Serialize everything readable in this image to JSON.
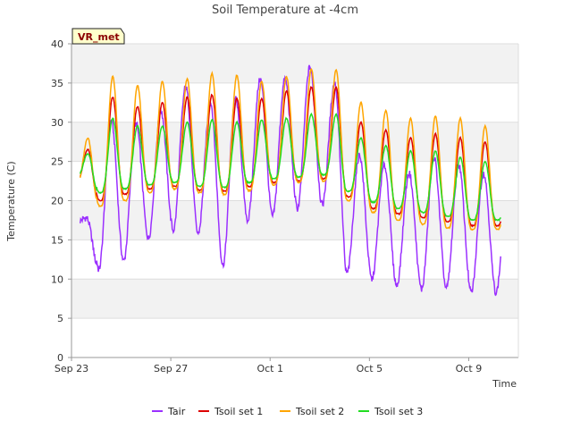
{
  "chart_data": {
    "type": "line",
    "title": "Soil Temperature at -4cm",
    "xlabel": "Time",
    "ylabel": "Temperature (C)",
    "ylim": [
      0,
      40
    ],
    "xlim_days": [
      0,
      18
    ],
    "yticks": [
      0,
      5,
      10,
      15,
      20,
      25,
      30,
      35,
      40
    ],
    "xticks": [
      {
        "label": "Sep 23",
        "day": 0
      },
      {
        "label": "Sep 27",
        "day": 4
      },
      {
        "label": "Oct 1",
        "day": 8
      },
      {
        "label": "Oct 5",
        "day": 12
      },
      {
        "label": "Oct 9",
        "day": 16
      }
    ],
    "badge": "VR_met",
    "grid": true,
    "legend_position": "bottom",
    "series": [
      {
        "name": "Tair",
        "color": "#9b30ff",
        "daily_max": [
          17.8,
          30.2,
          29.8,
          31.5,
          34.5,
          32.5,
          33.0,
          35.5,
          35.5,
          37.0,
          35.0,
          25.8,
          24.5,
          23.5,
          25.5,
          24.5,
          23.5
        ],
        "daily_min": [
          17.0,
          11.2,
          12.3,
          15.2,
          16.2,
          15.8,
          11.8,
          17.5,
          18.0,
          19.0,
          19.5,
          10.8,
          10.0,
          9.2,
          8.7,
          8.8,
          8.3
        ]
      },
      {
        "name": "Tsoil set 1",
        "color": "#dd0000",
        "daily_max": [
          26.5,
          33.2,
          32.0,
          32.5,
          33.2,
          33.5,
          33.0,
          33.0,
          34.0,
          34.5,
          34.5,
          30.0,
          29.0,
          28.0,
          28.5,
          28.0,
          27.5
        ],
        "daily_min": [
          22.5,
          20.0,
          20.8,
          21.5,
          21.8,
          21.3,
          21.2,
          21.8,
          22.3,
          22.5,
          22.8,
          20.5,
          19.0,
          18.3,
          17.8,
          17.3,
          16.8
        ]
      },
      {
        "name": "Tsoil set 2",
        "color": "#ffa500",
        "daily_max": [
          28.0,
          35.8,
          34.7,
          35.2,
          35.5,
          36.2,
          36.0,
          35.2,
          35.8,
          36.8,
          36.7,
          32.5,
          31.5,
          30.5,
          30.8,
          30.5,
          29.5
        ],
        "daily_min": [
          22.0,
          19.3,
          20.0,
          21.0,
          21.5,
          21.0,
          20.8,
          21.3,
          22.0,
          22.3,
          22.5,
          20.0,
          18.5,
          17.5,
          17.0,
          16.5,
          16.3
        ]
      },
      {
        "name": "Tsoil set 3",
        "color": "#22dd22",
        "daily_max": [
          26.0,
          30.5,
          29.5,
          29.5,
          30.0,
          30.3,
          30.0,
          30.3,
          30.5,
          31.0,
          31.0,
          28.0,
          27.0,
          26.3,
          26.3,
          25.5,
          25.0
        ],
        "daily_min": [
          23.0,
          21.0,
          21.5,
          22.0,
          22.3,
          21.8,
          21.7,
          22.3,
          22.8,
          23.0,
          23.3,
          21.2,
          19.8,
          19.0,
          18.5,
          18.0,
          17.5
        ]
      }
    ]
  }
}
